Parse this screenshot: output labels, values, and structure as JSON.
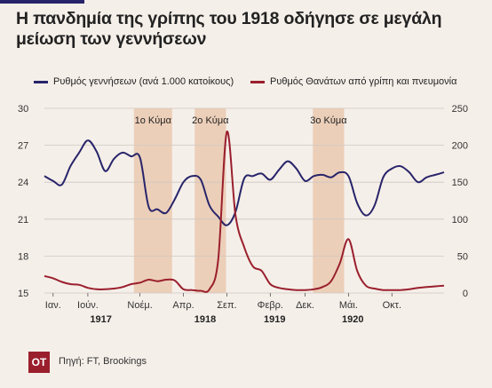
{
  "title": "Η πανδημία της γρίπης του 1918 οδήγησε σε μεγάλη μείωση των γεννήσεων",
  "footer": {
    "logo": "OT",
    "source": "Πηγή: FT, Brookings"
  },
  "colors": {
    "births": "#27246a",
    "deaths": "#9a1f2d",
    "band": "#e8c4a8",
    "background": "#f5efe9"
  },
  "chart_data": {
    "type": "line",
    "title": "Η πανδημία της γρίπης του 1918 οδήγησε σε μεγάλη μείωση των γεννήσεων",
    "legend_placement": "top",
    "x_unit": "month index (0 = Jan 1917)",
    "x_ticks": [
      {
        "x": 0,
        "label": "Ιαν."
      },
      {
        "x": 4,
        "label": "Ιούν."
      },
      {
        "x": 10,
        "label": "Νοέμ."
      },
      {
        "x": 15,
        "label": "Απρ."
      },
      {
        "x": 20,
        "label": "Σεπ."
      },
      {
        "x": 25,
        "label": "Φεβρ."
      },
      {
        "x": 29,
        "label": "Δεκ."
      },
      {
        "x": 34,
        "label": "Μάι."
      },
      {
        "x": 39,
        "label": "Οκτ."
      }
    ],
    "year_labels": [
      {
        "x": 5.5,
        "label": "1917"
      },
      {
        "x": 17.5,
        "label": "1918"
      },
      {
        "x": 25.5,
        "label": "1919"
      },
      {
        "x": 34.5,
        "label": "1920"
      }
    ],
    "y_left": {
      "label": "",
      "range": [
        15,
        30
      ],
      "ticks": [
        15,
        18,
        21,
        24,
        27,
        30
      ]
    },
    "y_right": {
      "label": "",
      "range": [
        0,
        250
      ],
      "ticks": [
        0,
        50,
        100,
        150,
        200,
        250
      ]
    },
    "x_range": [
      -1,
      42
    ],
    "bands": [
      {
        "label": "1ο Κύμα",
        "x_start": 9.3,
        "x_end": 13.7
      },
      {
        "label": "2ο Κύμα",
        "x_start": 16.3,
        "x_end": 19.9
      },
      {
        "label": "3ο Κύμα",
        "x_start": 29.9,
        "x_end": 33.5
      }
    ],
    "series": [
      {
        "name": "Ρυθμός γεννήσεων (ανά 1.000 κατοίκους)",
        "axis": "left",
        "color": "#27246a",
        "points": [
          [
            -1,
            24.5
          ],
          [
            0,
            24.1
          ],
          [
            1,
            23.8
          ],
          [
            2,
            25.3
          ],
          [
            3,
            26.4
          ],
          [
            4,
            27.4
          ],
          [
            5,
            26.5
          ],
          [
            6,
            24.9
          ],
          [
            7,
            25.9
          ],
          [
            8,
            26.4
          ],
          [
            9,
            26.1
          ],
          [
            10,
            26.0
          ],
          [
            11,
            22.0
          ],
          [
            12,
            21.8
          ],
          [
            13,
            21.5
          ],
          [
            14,
            22.6
          ],
          [
            15,
            24.0
          ],
          [
            16,
            24.5
          ],
          [
            17,
            24.2
          ],
          [
            18,
            22.1
          ],
          [
            19,
            21.2
          ],
          [
            20,
            20.5
          ],
          [
            21,
            21.6
          ],
          [
            22,
            24.3
          ],
          [
            23,
            24.5
          ],
          [
            24,
            24.7
          ],
          [
            25,
            24.2
          ],
          [
            26,
            25.0
          ],
          [
            27,
            25.7
          ],
          [
            28,
            25.1
          ],
          [
            29,
            24.1
          ],
          [
            30,
            24.5
          ],
          [
            31,
            24.6
          ],
          [
            32,
            24.4
          ],
          [
            33,
            24.8
          ],
          [
            34,
            24.5
          ],
          [
            35,
            22.3
          ],
          [
            36,
            21.3
          ],
          [
            37,
            22.1
          ],
          [
            38,
            24.4
          ],
          [
            39,
            25.1
          ],
          [
            40,
            25.3
          ],
          [
            41,
            24.8
          ],
          [
            42,
            24.0
          ],
          [
            43,
            24.4
          ],
          [
            44,
            24.6
          ],
          [
            45,
            24.8
          ]
        ]
      },
      {
        "name": "Ρυθμός Θανάτων από γρίπη και πνευμονία",
        "axis": "right",
        "color": "#9a1f2d",
        "points": [
          [
            -1,
            23
          ],
          [
            0,
            20
          ],
          [
            1,
            15
          ],
          [
            2,
            12
          ],
          [
            3,
            11
          ],
          [
            4,
            7
          ],
          [
            5,
            5
          ],
          [
            6,
            5
          ],
          [
            7,
            6
          ],
          [
            8,
            8
          ],
          [
            9,
            12
          ],
          [
            10,
            14
          ],
          [
            11,
            18
          ],
          [
            12,
            16
          ],
          [
            13,
            18
          ],
          [
            14,
            17
          ],
          [
            15,
            5
          ],
          [
            16,
            4
          ],
          [
            17,
            3
          ],
          [
            18,
            5
          ],
          [
            19,
            45
          ],
          [
            20,
            218
          ],
          [
            21,
            105
          ],
          [
            22,
            62
          ],
          [
            23,
            36
          ],
          [
            24,
            30
          ],
          [
            25,
            12
          ],
          [
            26,
            7
          ],
          [
            27,
            5
          ],
          [
            28,
            4
          ],
          [
            29,
            4
          ],
          [
            30,
            5
          ],
          [
            31,
            8
          ],
          [
            32,
            16
          ],
          [
            33,
            40
          ],
          [
            34,
            73
          ],
          [
            35,
            30
          ],
          [
            36,
            10
          ],
          [
            37,
            6
          ],
          [
            38,
            4
          ],
          [
            39,
            4
          ],
          [
            40,
            4
          ],
          [
            41,
            5
          ],
          [
            42,
            7
          ],
          [
            43,
            8
          ],
          [
            44,
            9
          ],
          [
            45,
            10
          ]
        ]
      }
    ]
  }
}
